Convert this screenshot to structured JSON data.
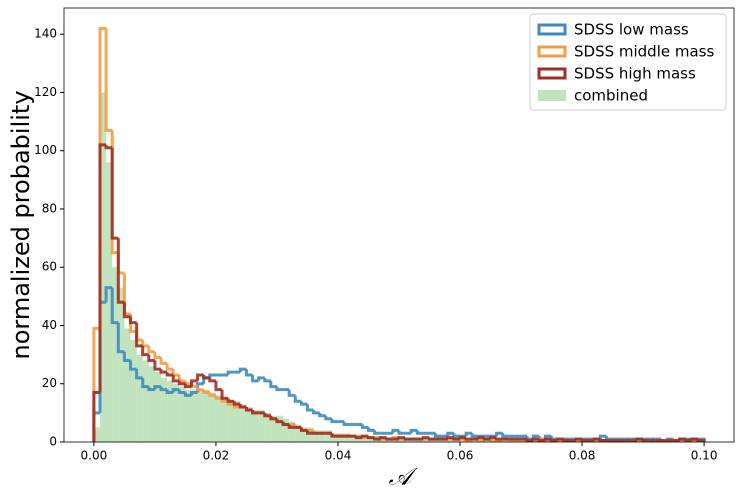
{
  "chart_data": {
    "type": "histogram",
    "x_label": "𝒜",
    "y_label": "normalized probability",
    "bins": [
      0,
      0.001,
      0.002,
      0.003,
      0.004,
      0.005,
      0.006,
      0.007,
      0.008,
      0.009,
      0.01,
      0.011,
      0.012,
      0.013,
      0.014,
      0.015,
      0.016,
      0.017,
      0.018,
      0.019,
      0.02,
      0.021,
      0.022,
      0.023,
      0.024,
      0.025,
      0.026,
      0.027,
      0.028,
      0.029,
      0.03,
      0.031,
      0.032,
      0.033,
      0.034,
      0.035,
      0.036,
      0.037,
      0.038,
      0.039,
      0.04,
      0.041,
      0.042,
      0.043,
      0.044,
      0.045,
      0.046,
      0.047,
      0.048,
      0.049,
      0.05,
      0.051,
      0.052,
      0.053,
      0.054,
      0.055,
      0.056,
      0.057,
      0.058,
      0.059,
      0.06,
      0.061,
      0.062,
      0.063,
      0.064,
      0.065,
      0.066,
      0.067,
      0.068,
      0.069,
      0.07,
      0.071,
      0.072,
      0.073,
      0.074,
      0.075,
      0.076,
      0.077,
      0.078,
      0.079,
      0.08,
      0.081,
      0.082,
      0.083,
      0.084,
      0.085,
      0.086,
      0.087,
      0.088,
      0.089,
      0.09,
      0.091,
      0.092,
      0.093,
      0.094,
      0.095,
      0.096,
      0.097,
      0.098,
      0.099,
      0.1
    ],
    "series": [
      {
        "name": "SDSS low mass",
        "color": "#3d8bbd",
        "style": "step",
        "values": [
          10,
          48,
          53,
          41,
          31,
          28,
          25,
          22,
          19,
          18,
          19,
          18,
          17,
          18,
          17,
          16,
          17,
          20,
          22,
          23,
          23,
          23,
          24,
          24,
          25,
          23,
          21,
          22,
          21,
          19,
          18,
          18,
          16,
          14,
          13,
          11,
          10,
          9,
          8,
          7,
          7,
          6,
          6,
          6,
          5,
          4,
          3,
          3,
          3,
          4,
          3,
          3,
          4,
          3,
          3,
          3,
          2,
          2,
          3,
          2,
          2,
          3,
          2,
          2,
          2,
          2,
          3,
          2,
          2,
          2,
          2,
          1,
          2,
          1,
          2,
          1,
          1,
          1,
          1,
          1,
          1,
          1,
          1,
          2,
          1,
          1,
          1,
          1,
          1,
          1,
          1,
          1,
          1,
          0.5,
          1,
          0.5,
          1,
          1,
          1,
          1
        ]
      },
      {
        "name": "SDSS middle mass",
        "color": "#f39c45",
        "style": "step",
        "values": [
          39,
          142,
          107,
          65,
          58,
          44,
          38,
          35,
          33,
          31,
          29,
          27,
          25,
          23,
          21,
          20,
          19,
          18,
          17,
          16,
          15,
          14,
          13,
          12,
          12,
          11,
          10,
          10,
          9,
          8,
          7,
          6,
          6,
          5,
          4,
          4,
          3,
          3,
          3,
          2,
          2,
          2,
          2,
          2,
          1.5,
          1.5,
          1.5,
          1,
          1,
          1.5,
          1,
          1,
          1,
          1,
          1,
          1,
          1,
          1,
          1,
          1,
          1,
          0.5,
          1,
          0.5,
          1,
          0.5,
          0.5,
          1,
          0.5,
          0.5,
          0.5,
          0.5,
          0.5,
          1,
          0.5,
          0.5,
          0.5,
          0.5,
          0.5,
          0.5,
          0.5,
          0.5,
          0.5,
          0.5,
          0.5,
          0.5,
          0.5,
          0.5,
          0.5,
          0.5,
          0.5,
          0.5,
          0.5,
          0.5,
          0.5,
          0.5,
          0.5,
          0.5,
          0.5,
          0.5
        ]
      },
      {
        "name": "SDSS high mass",
        "color": "#9c2f25",
        "style": "step",
        "values": [
          17,
          102,
          101,
          70,
          48,
          43,
          41,
          33,
          30,
          28,
          25,
          24,
          23,
          21,
          20,
          19,
          21,
          23,
          22,
          21,
          18,
          15,
          14,
          13,
          12,
          11,
          10,
          10,
          9,
          8,
          7,
          6,
          5,
          5,
          4,
          3,
          3,
          3,
          3,
          2,
          2,
          2,
          2,
          1.5,
          2,
          1.5,
          1,
          1.5,
          1,
          1,
          1.5,
          1,
          1,
          1,
          1.5,
          1,
          1,
          1,
          1.5,
          1,
          1.5,
          1,
          1,
          1.5,
          1,
          1.5,
          1,
          1,
          1,
          1,
          1,
          0.5,
          1,
          0.5,
          1,
          0.5,
          1,
          0.5,
          0.5,
          1,
          0.5,
          0.5,
          1,
          0.5,
          0.5,
          0.5,
          0.5,
          0.5,
          0.5,
          1,
          0.5,
          0.5,
          0.5,
          0.5,
          0.5,
          0.5,
          1,
          0.5,
          1,
          0.5
        ]
      },
      {
        "name": "combined",
        "color": "#9fd69b",
        "style": "filled",
        "values": [
          5,
          120,
          96,
          60,
          53,
          39,
          35,
          30,
          28,
          26,
          24,
          22,
          21,
          20,
          19,
          18,
          18,
          18,
          18,
          17,
          16,
          15,
          14,
          14,
          13,
          12,
          11,
          11,
          10,
          9,
          9,
          8,
          7,
          6,
          5,
          5,
          4,
          4,
          4,
          3,
          3,
          3,
          2.5,
          2.5,
          2,
          2,
          2,
          1.5,
          1.5,
          1.5,
          1.5,
          1.5,
          1.5,
          1.5,
          1.5,
          1,
          1,
          1,
          1,
          1,
          1,
          1,
          1,
          1,
          1,
          1,
          1,
          1,
          1,
          1,
          1,
          1,
          1,
          1,
          0.5,
          1,
          0.5,
          0.5,
          0.5,
          0.5,
          0.5,
          0.5,
          0.5,
          0.5,
          0.5,
          0.5,
          0.5,
          0.5,
          0.5,
          0.5,
          0.5,
          0.5,
          0.5,
          0.5,
          0.5,
          0.5,
          0.5,
          0.5,
          0.5,
          0.5
        ]
      }
    ],
    "xlim": [
      -0.0049,
      0.1049
    ],
    "ylim": [
      0,
      149
    ],
    "xticks": [
      {
        "value": 0,
        "label": "0.00"
      },
      {
        "value": 0.02,
        "label": "0.02"
      },
      {
        "value": 0.04,
        "label": "0.04"
      },
      {
        "value": 0.06,
        "label": "0.06"
      },
      {
        "value": 0.08,
        "label": "0.08"
      },
      {
        "value": 0.1,
        "label": "0.10"
      }
    ],
    "yticks": [
      0,
      20,
      40,
      60,
      80,
      100,
      120,
      140
    ],
    "grid": false,
    "legend": "upper right"
  }
}
